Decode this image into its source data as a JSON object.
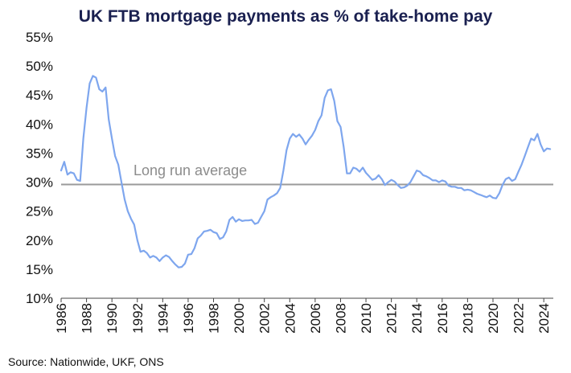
{
  "chart_data": {
    "type": "line",
    "title": "UK FTB mortgage payments as % of take-home pay",
    "source": "Source: Nationwide, UKF, ONS",
    "ylim": [
      10,
      55
    ],
    "yticks": [
      10,
      15,
      20,
      25,
      30,
      35,
      40,
      45,
      50,
      55
    ],
    "ytick_labels": [
      "10%",
      "15%",
      "20%",
      "25%",
      "30%",
      "35%",
      "40%",
      "45%",
      "50%",
      "55%"
    ],
    "xlim": [
      1986,
      2024.75
    ],
    "xticks": [
      1986,
      1988,
      1990,
      1992,
      1994,
      1996,
      1998,
      2000,
      2002,
      2004,
      2006,
      2008,
      2010,
      2012,
      2014,
      2016,
      2018,
      2020,
      2022,
      2024
    ],
    "xtick_labels": [
      "1986",
      "1988",
      "1990",
      "1992",
      "1994",
      "1996",
      "1998",
      "2000",
      "2002",
      "2004",
      "2006",
      "2008",
      "2010",
      "2012",
      "2014",
      "2016",
      "2018",
      "2020",
      "2022",
      "2024"
    ],
    "grid": false,
    "colors": {
      "series": "#7ea6ee",
      "average": "#9a9a9a",
      "title": "#1a2050",
      "axis": "#444444"
    },
    "average": {
      "label": "Long run average",
      "value": 29.6
    },
    "series": [
      {
        "x": [
          1986.0,
          1986.25,
          1986.5,
          1986.75,
          1987.0,
          1987.25,
          1987.5,
          1987.75,
          1988.0,
          1988.25,
          1988.5,
          1988.75,
          1989.0,
          1989.25,
          1989.5,
          1989.75,
          1990.0,
          1990.25,
          1990.5,
          1990.75,
          1991.0,
          1991.25,
          1991.5,
          1991.75,
          1992.0,
          1992.25,
          1992.5,
          1992.75,
          1993.0,
          1993.25,
          1993.5,
          1993.75,
          1994.0,
          1994.25,
          1994.5,
          1994.75,
          1995.0,
          1995.25,
          1995.5,
          1995.75,
          1996.0,
          1996.25,
          1996.5,
          1996.75,
          1997.0,
          1997.25,
          1997.5,
          1997.75,
          1998.0,
          1998.25,
          1998.5,
          1998.75,
          1999.0,
          1999.25,
          1999.5,
          1999.75,
          2000.0,
          2000.25,
          2000.5,
          2000.75,
          2001.0,
          2001.25,
          2001.5,
          2001.75,
          2002.0,
          2002.25,
          2002.5,
          2002.75,
          2003.0,
          2003.25,
          2003.5,
          2003.75,
          2004.0,
          2004.25,
          2004.5,
          2004.75,
          2005.0,
          2005.25,
          2005.5,
          2005.75,
          2006.0,
          2006.25,
          2006.5,
          2006.75,
          2007.0,
          2007.25,
          2007.5,
          2007.75,
          2008.0,
          2008.25,
          2008.5,
          2008.75,
          2009.0,
          2009.25,
          2009.5,
          2009.75,
          2010.0,
          2010.25,
          2010.5,
          2010.75,
          2011.0,
          2011.25,
          2011.5,
          2011.75,
          2012.0,
          2012.25,
          2012.5,
          2012.75,
          2013.0,
          2013.25,
          2013.5,
          2013.75,
          2014.0,
          2014.25,
          2014.5,
          2014.75,
          2015.0,
          2015.25,
          2015.5,
          2015.75,
          2016.0,
          2016.25,
          2016.5,
          2016.75,
          2017.0,
          2017.25,
          2017.5,
          2017.75,
          2018.0,
          2018.25,
          2018.5,
          2018.75,
          2019.0,
          2019.25,
          2019.5,
          2019.75,
          2020.0,
          2020.25,
          2020.5,
          2020.75,
          2021.0,
          2021.25,
          2021.5,
          2021.75,
          2022.0,
          2022.25,
          2022.5,
          2022.75,
          2023.0,
          2023.25,
          2023.5,
          2023.75,
          2024.0,
          2024.25,
          2024.5
        ],
        "values": [
          32.0,
          33.5,
          31.3,
          31.7,
          31.5,
          30.4,
          30.2,
          37.5,
          42.8,
          47.0,
          48.3,
          48.0,
          46.0,
          45.6,
          46.3,
          40.8,
          37.5,
          34.5,
          33.0,
          30.0,
          27.0,
          25.0,
          23.7,
          22.7,
          20.0,
          18.0,
          18.2,
          17.8,
          17.0,
          17.3,
          17.0,
          16.4,
          17.0,
          17.4,
          17.1,
          16.4,
          15.8,
          15.3,
          15.4,
          16.0,
          17.5,
          17.6,
          18.6,
          20.3,
          20.8,
          21.5,
          21.6,
          21.8,
          21.4,
          21.2,
          20.2,
          20.5,
          21.5,
          23.5,
          24.0,
          23.2,
          23.6,
          23.3,
          23.4,
          23.4,
          23.5,
          22.8,
          23.0,
          24.0,
          25.0,
          27.0,
          27.4,
          27.7,
          28.1,
          29.0,
          32.0,
          35.5,
          37.5,
          38.3,
          37.8,
          38.2,
          37.5,
          36.5,
          37.3,
          38.0,
          39.0,
          40.5,
          41.5,
          44.5,
          45.8,
          46.0,
          44.0,
          40.5,
          39.5,
          36.0,
          31.5,
          31.5,
          32.5,
          32.3,
          31.8,
          32.5,
          31.6,
          31.0,
          30.4,
          30.6,
          31.2,
          30.5,
          29.5,
          30.0,
          30.4,
          30.1,
          29.5,
          29.0,
          29.1,
          29.4,
          30.0,
          31.0,
          32.0,
          31.8,
          31.2,
          31.0,
          30.7,
          30.3,
          30.3,
          30.0,
          30.3,
          30.1,
          29.4,
          29.2,
          29.2,
          29.0,
          29.0,
          28.6,
          28.7,
          28.6,
          28.3,
          28.0,
          27.8,
          27.6,
          27.4,
          27.7,
          27.3,
          27.2,
          28.1,
          29.5,
          30.5,
          30.8,
          30.2,
          30.5,
          31.8,
          33.0,
          34.5,
          36.0,
          37.5,
          37.2,
          38.3,
          36.5,
          35.3,
          35.8,
          35.7
        ]
      }
    ]
  }
}
